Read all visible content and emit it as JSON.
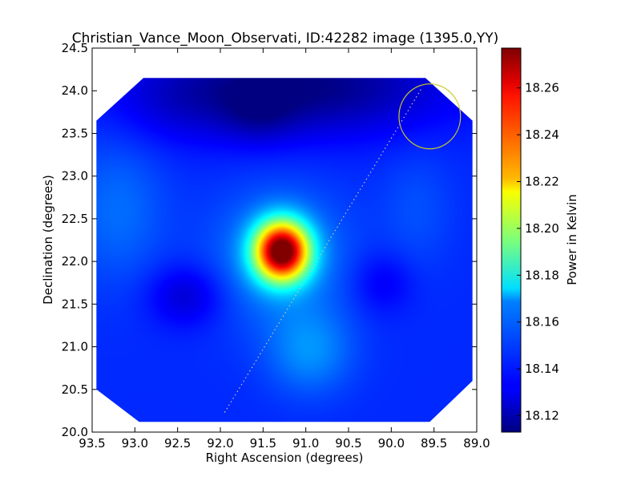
{
  "chart_data": {
    "type": "heatmap",
    "title": "Christian_Vance_Moon_Observati, ID:42282 image (1395.0,YY)",
    "xlabel": "Right Ascension (degrees)",
    "ylabel": "Declination (degrees)",
    "xlim": [
      93.5,
      89.0
    ],
    "ylim": [
      20.0,
      24.5
    ],
    "x_ticks": [
      "93.5",
      "93.0",
      "92.5",
      "92.0",
      "91.5",
      "91.0",
      "90.5",
      "90.0",
      "89.5",
      "89.0"
    ],
    "x_tick_values": [
      93.5,
      93.0,
      92.5,
      92.0,
      91.5,
      91.0,
      90.5,
      90.0,
      89.5,
      89.0
    ],
    "y_ticks": [
      "20.0",
      "20.5",
      "21.0",
      "21.5",
      "22.0",
      "22.5",
      "23.0",
      "23.5",
      "24.0",
      "24.5"
    ],
    "y_tick_values": [
      20.0,
      20.5,
      21.0,
      21.5,
      22.0,
      22.5,
      23.0,
      23.5,
      24.0,
      24.5
    ],
    "colorbar": {
      "label": "Power in Kelvin",
      "colormap": "jet",
      "range": [
        18.113,
        18.277
      ],
      "ticks": [
        "18.12",
        "18.14",
        "18.16",
        "18.18",
        "18.20",
        "18.22",
        "18.24",
        "18.26"
      ],
      "tick_values": [
        18.12,
        18.14,
        18.16,
        18.18,
        18.2,
        18.22,
        18.24,
        18.26
      ]
    },
    "map_extent": {
      "ra": [
        89.05,
        93.45
      ],
      "dec": [
        20.12,
        24.15
      ],
      "octagon": [
        [
          92.9,
          24.15
        ],
        [
          89.6,
          24.15
        ],
        [
          89.05,
          23.65
        ],
        [
          89.05,
          20.6
        ],
        [
          89.55,
          20.12
        ],
        [
          92.95,
          20.12
        ],
        [
          93.45,
          20.5
        ],
        [
          93.45,
          23.65
        ]
      ]
    },
    "background_level": 18.14,
    "features": [
      {
        "name": "peak",
        "ra": 91.28,
        "dec": 22.12,
        "amplitude": 0.137,
        "sigma_ra": 0.22,
        "sigma_dec": 0.24
      },
      {
        "name": "halo",
        "ra": 91.3,
        "dec": 22.05,
        "amplitude": 0.017,
        "sigma_ra": 0.55,
        "sigma_dec": 0.55
      },
      {
        "name": "south bright patch",
        "ra": 90.95,
        "dec": 20.95,
        "amplitude": 0.016,
        "sigma_ra": 0.35,
        "sigma_dec": 0.35
      },
      {
        "name": "west bright patch",
        "ra": 93.2,
        "dec": 22.6,
        "amplitude": 0.011,
        "sigma_ra": 0.4,
        "sigma_dec": 0.6
      },
      {
        "name": "northeast bright patch",
        "ra": 89.7,
        "dec": 22.6,
        "amplitude": 0.006,
        "sigma_ra": 0.3,
        "sigma_dec": 0.5
      },
      {
        "name": "north dark region",
        "ra": 91.1,
        "dec": 24.05,
        "amplitude": -0.027,
        "sigma_ra": 1.2,
        "sigma_dec": 0.4
      },
      {
        "name": "north dark core",
        "ra": 91.55,
        "dec": 23.75,
        "amplitude": -0.01,
        "sigma_ra": 0.3,
        "sigma_dec": 0.25
      },
      {
        "name": "southwest dark blob",
        "ra": 92.4,
        "dec": 21.6,
        "amplitude": -0.014,
        "sigma_ra": 0.3,
        "sigma_dec": 0.25
      },
      {
        "name": "east dark blob",
        "ra": 90.1,
        "dec": 21.75,
        "amplitude": -0.009,
        "sigma_ra": 0.25,
        "sigma_dec": 0.25
      },
      {
        "name": "upper left dark",
        "ra": 92.5,
        "dec": 23.85,
        "amplitude": -0.006,
        "sigma_ra": 0.5,
        "sigma_dec": 0.35
      }
    ],
    "overlays": {
      "circle": {
        "ra": 89.55,
        "dec": 23.7,
        "radius_ra_deg": 0.36,
        "radius_dec_deg": 0.38,
        "color": "#cccc22"
      },
      "dotted_line": {
        "from": [
          91.95,
          20.23
        ],
        "to": [
          89.65,
          24.02
        ],
        "color": "#c8c8a0"
      }
    }
  }
}
